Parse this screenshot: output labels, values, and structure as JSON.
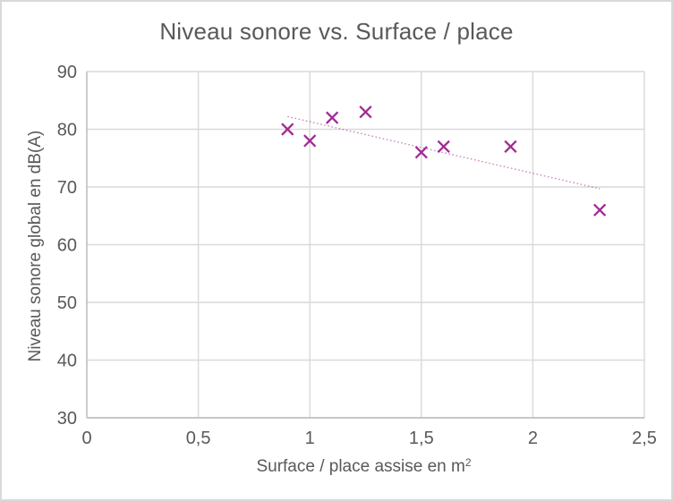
{
  "chart_data": {
    "type": "scatter",
    "title": "Niveau sonore vs. Surface / place",
    "xlabel": "Surface / place assise en m",
    "xlabel_superscript": "2",
    "ylabel": "Niveau sonore global en dB(A)",
    "points": [
      {
        "x": 0.9,
        "y": 80
      },
      {
        "x": 1.0,
        "y": 78
      },
      {
        "x": 1.1,
        "y": 82
      },
      {
        "x": 1.25,
        "y": 83
      },
      {
        "x": 1.5,
        "y": 76
      },
      {
        "x": 1.6,
        "y": 77
      },
      {
        "x": 1.9,
        "y": 77
      },
      {
        "x": 2.3,
        "y": 66
      }
    ],
    "xlim": [
      0,
      2.5
    ],
    "ylim": [
      30,
      90
    ],
    "xticks": [
      {
        "value": 0,
        "label": "0"
      },
      {
        "value": 0.5,
        "label": "0,5"
      },
      {
        "value": 1,
        "label": "1"
      },
      {
        "value": 1.5,
        "label": "1,5"
      },
      {
        "value": 2,
        "label": "2"
      },
      {
        "value": 2.5,
        "label": "2,5"
      }
    ],
    "yticks": [
      {
        "value": 30,
        "label": "30"
      },
      {
        "value": 40,
        "label": "40"
      },
      {
        "value": 50,
        "label": "50"
      },
      {
        "value": 60,
        "label": "60"
      },
      {
        "value": 70,
        "label": "70"
      },
      {
        "value": 80,
        "label": "80"
      },
      {
        "value": 90,
        "label": "90"
      }
    ],
    "trendline": {
      "type": "linear",
      "style": "dotted",
      "x_start": 0.9,
      "y_start": 82.2,
      "x_end": 2.3,
      "y_end": 69.7
    },
    "grid": true,
    "legend": "none",
    "colors": {
      "marker": "#A02B93",
      "trendline": "#A02B93",
      "gridline": "#D9D9D9",
      "axis_line": "#BFBFBF",
      "text": "#595959",
      "background": "#FFFFFF",
      "frame_border": "#D9D9D9"
    }
  }
}
